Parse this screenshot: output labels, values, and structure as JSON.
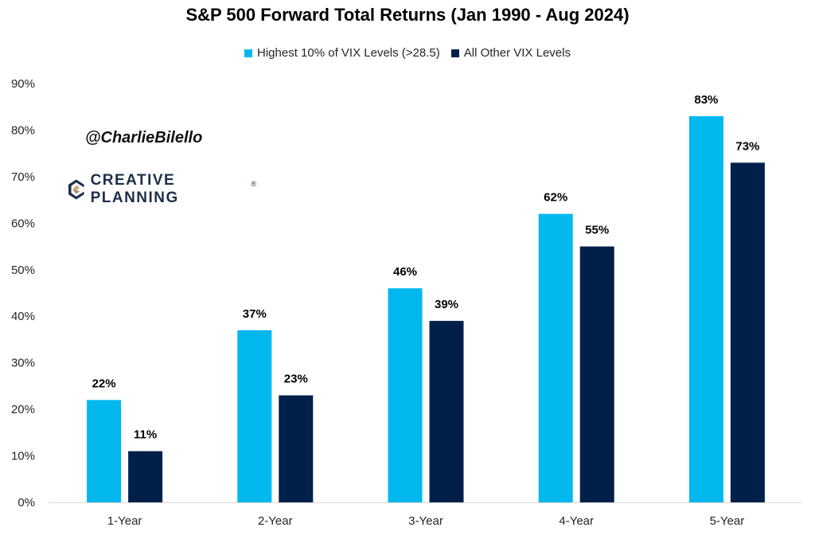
{
  "chart_data": {
    "type": "bar",
    "title": "S&P 500 Forward Total Returns (Jan 1990 - Aug 2024)",
    "categories": [
      "1-Year",
      "2-Year",
      "3-Year",
      "4-Year",
      "5-Year"
    ],
    "series": [
      {
        "name": "Highest 10% of VIX Levels (>28.5)",
        "values": [
          22,
          37,
          46,
          62,
          83
        ],
        "labels": [
          "22%",
          "37%",
          "46%",
          "62%",
          "83%"
        ],
        "color": "#00b8ee"
      },
      {
        "name": "All Other VIX Levels",
        "values": [
          11,
          23,
          39,
          55,
          73
        ],
        "labels": [
          "11%",
          "23%",
          "39%",
          "55%",
          "73%"
        ],
        "color": "#00204a"
      }
    ],
    "ylim": [
      0,
      90
    ],
    "yticks": [
      0,
      10,
      20,
      30,
      40,
      50,
      60,
      70,
      80,
      90
    ],
    "ytick_labels": [
      "0%",
      "10%",
      "20%",
      "30%",
      "40%",
      "50%",
      "60%",
      "70%",
      "80%",
      "90%"
    ],
    "legend": "top-center",
    "grid": false
  },
  "watermark": "@CharlieBilello",
  "logo": {
    "text": "CREATIVE PLANNING",
    "mark": "®"
  }
}
